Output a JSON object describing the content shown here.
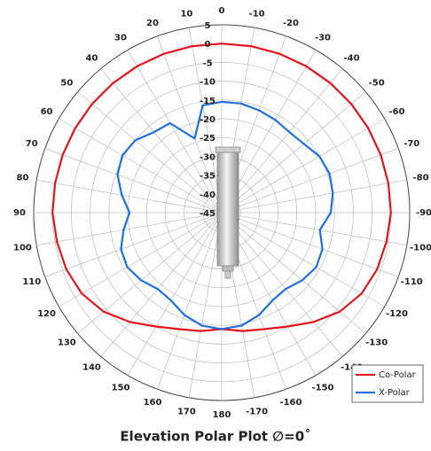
{
  "chart_data": {
    "type": "polar",
    "title": "Elevation Polar Plot ∅=0˚",
    "theta_zero": "top",
    "theta_direction": "counterclockwise",
    "rlim": [
      -45,
      5
    ],
    "rticks": [
      5,
      0,
      -5,
      -10,
      -15,
      -20,
      -25,
      -30,
      -35,
      -40,
      -45
    ],
    "theta_ticks": [
      0,
      10,
      20,
      30,
      40,
      50,
      60,
      70,
      80,
      90,
      100,
      110,
      120,
      130,
      140,
      150,
      160,
      170,
      180,
      -170,
      -160,
      -150,
      -140,
      -130,
      -120,
      -110,
      -100,
      -90,
      -80,
      -70,
      -60,
      -50,
      -40,
      -30,
      -20,
      -10
    ],
    "x": [
      -180,
      -170,
      -160,
      -150,
      -140,
      -130,
      -120,
      -110,
      -100,
      -90,
      -80,
      -70,
      -60,
      -50,
      -40,
      -30,
      -20,
      -10,
      0,
      10,
      20,
      30,
      40,
      50,
      60,
      70,
      80,
      90,
      100,
      110,
      120,
      130,
      140,
      150,
      160,
      170,
      180
    ],
    "series": [
      {
        "name": "Co-Polar",
        "color": "#e3141c",
        "values": [
          -14,
          -13,
          -12,
          -10,
          -7,
          -4,
          -2,
          -1,
          -0.5,
          0,
          0,
          0,
          0,
          0,
          0,
          0,
          0,
          0,
          0,
          0,
          0,
          0,
          0,
          0,
          0,
          0,
          0,
          0,
          -0.5,
          -1,
          -2,
          -4,
          -7,
          -10,
          -12,
          -13,
          -14
        ]
      },
      {
        "name": "X-Polar",
        "color": "#1f6fdc",
        "values": [
          -14,
          -14.5,
          -16,
          -18,
          -18.5,
          -17,
          -16,
          -16.5,
          -18.5,
          -16,
          -15,
          -14.5,
          -15,
          -16.5,
          -17,
          -16.5,
          -16,
          -15.5,
          -15.5,
          -16,
          -24,
          -17.5,
          -17,
          -15,
          -14.5,
          -15.5,
          -18,
          -20.5,
          -18.5,
          -16.5,
          -16,
          -17,
          -18.5,
          -18,
          -16,
          -14.5,
          -14
        ]
      }
    ],
    "legend": "lower right"
  }
}
